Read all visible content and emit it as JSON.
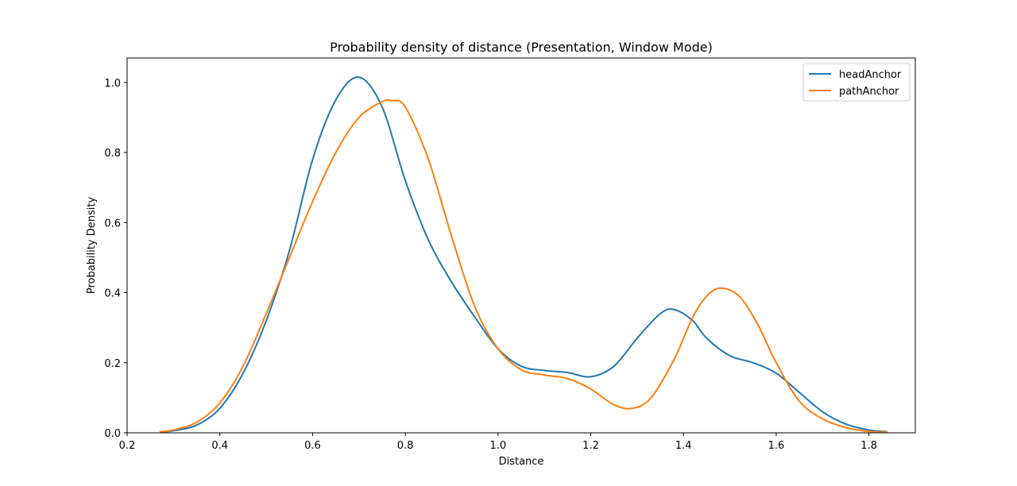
{
  "chart_data": {
    "type": "line",
    "title": "Probability density of distance (Presentation, Window Mode)",
    "xlabel": "Distance",
    "ylabel": "Probability Density",
    "xlim": [
      0.2,
      1.9
    ],
    "ylim": [
      0.0,
      1.07
    ],
    "xticks": [
      "0.2",
      "0.4",
      "0.6",
      "0.8",
      "1.0",
      "1.2",
      "1.4",
      "1.6",
      "1.8"
    ],
    "yticks": [
      "0.0",
      "0.2",
      "0.4",
      "0.6",
      "0.8",
      "1.0"
    ],
    "grid": false,
    "legend_position": "top-right",
    "series": [
      {
        "name": "headAnchor",
        "color": "#1f77b4",
        "x": [
          0.27,
          0.3,
          0.35,
          0.4,
          0.45,
          0.5,
          0.55,
          0.6,
          0.65,
          0.7,
          0.75,
          0.8,
          0.85,
          0.9,
          0.95,
          1.0,
          1.05,
          1.1,
          1.15,
          1.2,
          1.25,
          1.3,
          1.35,
          1.38,
          1.42,
          1.45,
          1.5,
          1.55,
          1.6,
          1.65,
          1.7,
          1.75,
          1.8,
          1.84
        ],
        "y": [
          0.003,
          0.006,
          0.022,
          0.07,
          0.17,
          0.32,
          0.52,
          0.78,
          0.95,
          1.015,
          0.93,
          0.72,
          0.55,
          0.43,
          0.33,
          0.24,
          0.19,
          0.178,
          0.172,
          0.16,
          0.19,
          0.27,
          0.34,
          0.352,
          0.32,
          0.27,
          0.22,
          0.2,
          0.17,
          0.115,
          0.06,
          0.025,
          0.008,
          0.003
        ]
      },
      {
        "name": "pathAnchor",
        "color": "#ff7f0e",
        "x": [
          0.27,
          0.3,
          0.35,
          0.4,
          0.45,
          0.5,
          0.55,
          0.6,
          0.65,
          0.7,
          0.75,
          0.77,
          0.8,
          0.85,
          0.9,
          0.95,
          1.0,
          1.05,
          1.1,
          1.15,
          1.2,
          1.25,
          1.29,
          1.33,
          1.38,
          1.42,
          1.45,
          1.48,
          1.52,
          1.56,
          1.6,
          1.65,
          1.7,
          1.75,
          1.8,
          1.84
        ],
        "y": [
          0.003,
          0.008,
          0.03,
          0.085,
          0.19,
          0.34,
          0.5,
          0.66,
          0.8,
          0.9,
          0.945,
          0.948,
          0.93,
          0.78,
          0.56,
          0.36,
          0.24,
          0.18,
          0.165,
          0.155,
          0.125,
          0.08,
          0.07,
          0.1,
          0.21,
          0.33,
          0.39,
          0.413,
          0.39,
          0.31,
          0.2,
          0.09,
          0.04,
          0.015,
          0.004,
          0.002
        ]
      }
    ]
  }
}
